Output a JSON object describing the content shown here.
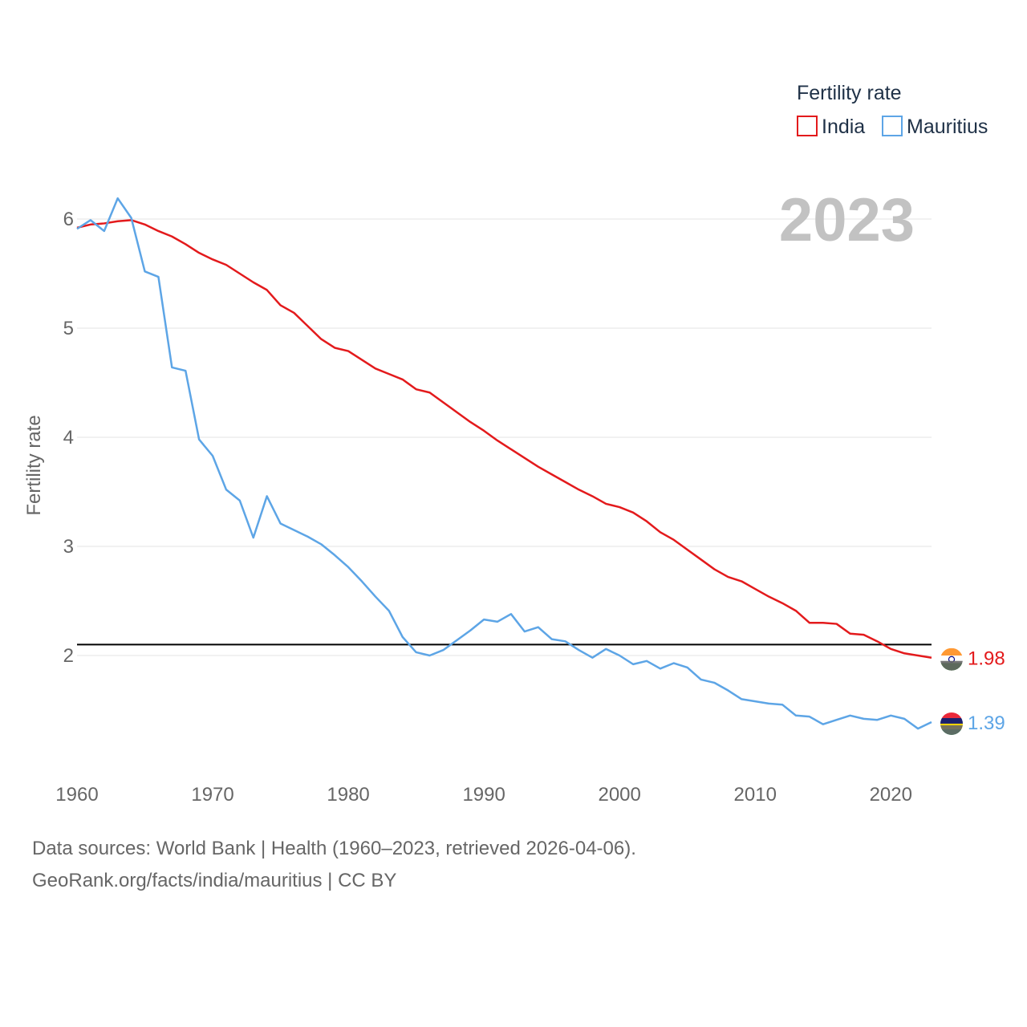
{
  "chart_data": {
    "type": "line",
    "title": "",
    "legend_title": "Fertility rate",
    "legend_position": "top-right",
    "year_label": "2023",
    "xlabel": "",
    "ylabel": "Fertility rate",
    "xlim": [
      1960,
      2023
    ],
    "ylim": [
      1.0,
      6.5
    ],
    "x_ticks": [
      1960,
      1970,
      1980,
      1990,
      2000,
      2010,
      2020
    ],
    "x_tick_labels": [
      "1960",
      "1970",
      "1980",
      "1990",
      "2000",
      "2010",
      "2020"
    ],
    "y_ticks": [
      2,
      3,
      4,
      5,
      6
    ],
    "y_tick_labels": [
      "2",
      "3",
      "4",
      "5",
      "6"
    ],
    "grid": true,
    "reference_line": 2.1,
    "x": [
      1960,
      1961,
      1962,
      1963,
      1964,
      1965,
      1966,
      1967,
      1968,
      1969,
      1970,
      1971,
      1972,
      1973,
      1974,
      1975,
      1976,
      1977,
      1978,
      1979,
      1980,
      1981,
      1982,
      1983,
      1984,
      1985,
      1986,
      1987,
      1988,
      1989,
      1990,
      1991,
      1992,
      1993,
      1994,
      1995,
      1996,
      1997,
      1998,
      1999,
      2000,
      2001,
      2002,
      2003,
      2004,
      2005,
      2006,
      2007,
      2008,
      2009,
      2010,
      2011,
      2012,
      2013,
      2014,
      2015,
      2016,
      2017,
      2018,
      2019,
      2020,
      2021,
      2022,
      2023
    ],
    "series": [
      {
        "name": "India",
        "color": "#e31a1c",
        "end_label": "1.98",
        "values": [
          5.92,
          5.95,
          5.96,
          5.98,
          5.99,
          5.95,
          5.89,
          5.84,
          5.77,
          5.69,
          5.63,
          5.58,
          5.5,
          5.42,
          5.35,
          5.21,
          5.14,
          5.02,
          4.9,
          4.82,
          4.79,
          4.71,
          4.63,
          4.58,
          4.53,
          4.44,
          4.41,
          4.32,
          4.23,
          4.14,
          4.06,
          3.97,
          3.89,
          3.81,
          3.73,
          3.66,
          3.59,
          3.52,
          3.46,
          3.39,
          3.36,
          3.31,
          3.23,
          3.13,
          3.06,
          2.97,
          2.88,
          2.79,
          2.72,
          2.68,
          2.61,
          2.54,
          2.48,
          2.41,
          2.3,
          2.3,
          2.29,
          2.2,
          2.19,
          2.13,
          2.06,
          2.02,
          2.0,
          1.98
        ]
      },
      {
        "name": "Mauritius",
        "color": "#5da5e6",
        "end_label": "1.39",
        "values": [
          5.91,
          5.99,
          5.89,
          6.19,
          6.01,
          5.52,
          5.47,
          4.64,
          4.61,
          3.98,
          3.83,
          3.52,
          3.42,
          3.08,
          3.46,
          3.21,
          3.15,
          3.09,
          3.02,
          2.92,
          2.81,
          2.68,
          2.54,
          2.41,
          2.17,
          2.03,
          2.0,
          2.05,
          2.14,
          2.23,
          2.33,
          2.31,
          2.38,
          2.22,
          2.26,
          2.15,
          2.13,
          2.05,
          1.98,
          2.06,
          2.0,
          1.92,
          1.95,
          1.88,
          1.93,
          1.89,
          1.78,
          1.75,
          1.68,
          1.6,
          1.58,
          1.56,
          1.55,
          1.45,
          1.44,
          1.37,
          1.41,
          1.45,
          1.42,
          1.41,
          1.45,
          1.42,
          1.33,
          1.39
        ]
      }
    ]
  },
  "footer": {
    "sources": "Data sources: World Bank | Health (1960–2023, retrieved 2026-04-06).",
    "credit": "GeoRank.org/facts/india/mauritius | CC BY"
  }
}
